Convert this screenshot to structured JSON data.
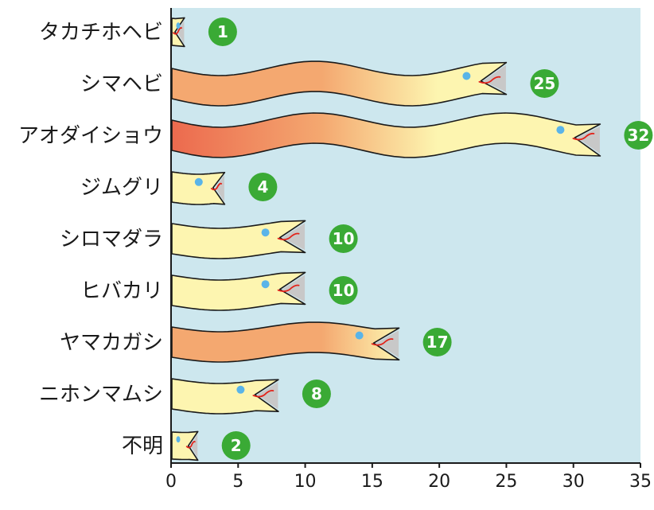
{
  "chart_data": {
    "type": "bar",
    "categories": [
      "タカチホヘビ",
      "シマヘビ",
      "アオダイショウ",
      "ジムグリ",
      "シロマダラ",
      "ヒバカリ",
      "ヤマカガシ",
      "ニホンマムシ",
      "不明"
    ],
    "values": [
      1,
      25,
      32,
      4,
      10,
      10,
      17,
      8,
      2
    ],
    "title": "",
    "xlabel": "",
    "ylabel": "",
    "xlim": [
      0,
      35
    ],
    "xticks": [
      "0",
      "5",
      "10",
      "15",
      "20",
      "25",
      "30",
      "35"
    ],
    "grid": false,
    "bar_style": "snake-shaped bars",
    "colors": {
      "plot_background": "#cde7ee",
      "body_light": "#fdf5b0",
      "body_gradient_mid": "#f4a870",
      "body_gradient_dark": "#ec6a4e",
      "head_shadow": "#c8c8c8",
      "eye": "#5ab4e8",
      "tongue": "#e2231a",
      "badge": "#3aaa35",
      "badge_text": "#ffffff"
    }
  }
}
